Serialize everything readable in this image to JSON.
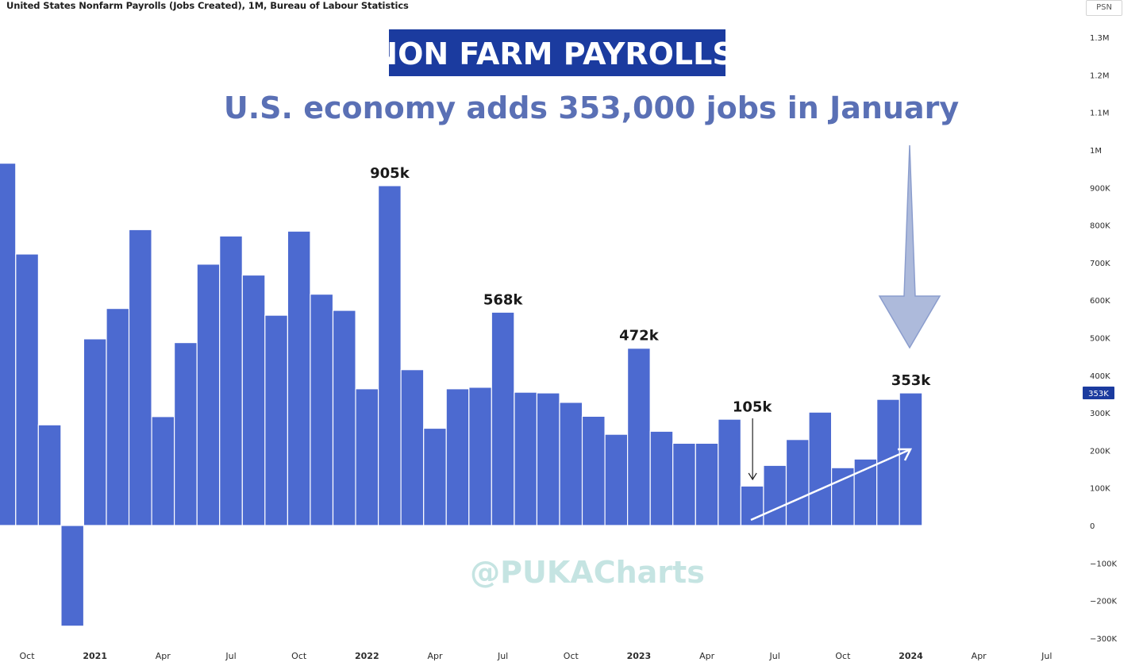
{
  "header": {
    "chart_info": "United States Nonfarm Payrolls (Jobs Created), 1M, Bureau of Labour Statistics",
    "scale_button": "PSN"
  },
  "banner": {
    "title": "NON FARM PAYROLLS",
    "bg_color": "#1b3b9f"
  },
  "headline": "U.S. economy adds 353,000 jobs in January",
  "watermark": "@PUKACharts",
  "colors": {
    "bar": "#4c6ad0",
    "headline": "#5a70b5",
    "watermark": "#c5e4e2",
    "arrow_fill": "#a5b3d8",
    "price_badge": "#1b3b9f"
  },
  "chart_data": {
    "type": "bar",
    "title": "United States Nonfarm Payrolls (Jobs Created), 1M, Bureau of Labour Statistics",
    "xlabel": "",
    "ylabel": "",
    "ylim": [
      -300000,
      1350000
    ],
    "x_range": [
      "2020-09",
      "2024-07"
    ],
    "grid": false,
    "legend": "none",
    "categories": [
      "2020-09",
      "2020-10",
      "2020-11",
      "2020-12",
      "2021-01",
      "2021-02",
      "2021-03",
      "2021-04",
      "2021-05",
      "2021-06",
      "2021-07",
      "2021-08",
      "2021-09",
      "2021-10",
      "2021-11",
      "2021-12",
      "2022-01",
      "2022-02",
      "2022-03",
      "2022-04",
      "2022-05",
      "2022-06",
      "2022-07",
      "2022-08",
      "2022-09",
      "2022-10",
      "2022-11",
      "2022-12",
      "2023-01",
      "2023-02",
      "2023-03",
      "2023-04",
      "2023-05",
      "2023-06",
      "2023-07",
      "2023-08",
      "2023-09",
      "2023-10",
      "2023-11",
      "2023-12",
      "2024-01"
    ],
    "values": [
      965000,
      723000,
      268000,
      -268000,
      497000,
      578000,
      788000,
      290000,
      487000,
      696000,
      771000,
      667000,
      560000,
      784000,
      616000,
      573000,
      364000,
      905000,
      415000,
      259000,
      364000,
      368000,
      568000,
      355000,
      353000,
      328000,
      291000,
      243000,
      472000,
      251000,
      219000,
      219000,
      283000,
      105000,
      160000,
      229000,
      302000,
      154000,
      177000,
      336000,
      353000
    ],
    "y_ticks": [
      {
        "value": 1300000,
        "label": "1.3M"
      },
      {
        "value": 1200000,
        "label": "1.2M"
      },
      {
        "value": 1100000,
        "label": "1.1M"
      },
      {
        "value": 1000000,
        "label": "1M"
      },
      {
        "value": 900000,
        "label": "900K"
      },
      {
        "value": 800000,
        "label": "800K"
      },
      {
        "value": 700000,
        "label": "700K"
      },
      {
        "value": 600000,
        "label": "600K"
      },
      {
        "value": 500000,
        "label": "500K"
      },
      {
        "value": 400000,
        "label": "400K"
      },
      {
        "value": 300000,
        "label": "300K"
      },
      {
        "value": 200000,
        "label": "200K"
      },
      {
        "value": 100000,
        "label": "100K"
      },
      {
        "value": 0,
        "label": "0"
      },
      {
        "value": -100000,
        "label": "−100K"
      },
      {
        "value": -200000,
        "label": "−200K"
      },
      {
        "value": -300000,
        "label": "−300K"
      }
    ],
    "x_ticks": [
      {
        "month": "2020-10",
        "label": "Oct",
        "bold": false
      },
      {
        "month": "2021-01",
        "label": "2021",
        "bold": true
      },
      {
        "month": "2021-04",
        "label": "Apr",
        "bold": false
      },
      {
        "month": "2021-07",
        "label": "Jul",
        "bold": false
      },
      {
        "month": "2021-10",
        "label": "Oct",
        "bold": false
      },
      {
        "month": "2022-01",
        "label": "2022",
        "bold": true
      },
      {
        "month": "2022-04",
        "label": "Apr",
        "bold": false
      },
      {
        "month": "2022-07",
        "label": "Jul",
        "bold": false
      },
      {
        "month": "2022-10",
        "label": "Oct",
        "bold": false
      },
      {
        "month": "2023-01",
        "label": "2023",
        "bold": true
      },
      {
        "month": "2023-04",
        "label": "Apr",
        "bold": false
      },
      {
        "month": "2023-07",
        "label": "Jul",
        "bold": false
      },
      {
        "month": "2023-10",
        "label": "Oct",
        "bold": false
      },
      {
        "month": "2024-01",
        "label": "2024",
        "bold": true
      },
      {
        "month": "2024-04",
        "label": "Apr",
        "bold": false
      },
      {
        "month": "2024-07",
        "label": "Jul",
        "bold": false
      }
    ],
    "annotations": [
      {
        "month": "2022-02",
        "value": 905000,
        "label": "905k"
      },
      {
        "month": "2022-07",
        "value": 568000,
        "label": "568k"
      },
      {
        "month": "2023-01",
        "value": 472000,
        "label": "472k"
      },
      {
        "month": "2023-06",
        "value": 105000,
        "label": "105k"
      },
      {
        "month": "2024-01",
        "value": 353000,
        "label": "353k"
      }
    ],
    "current_value": {
      "value": 353000,
      "label": "353K"
    }
  }
}
